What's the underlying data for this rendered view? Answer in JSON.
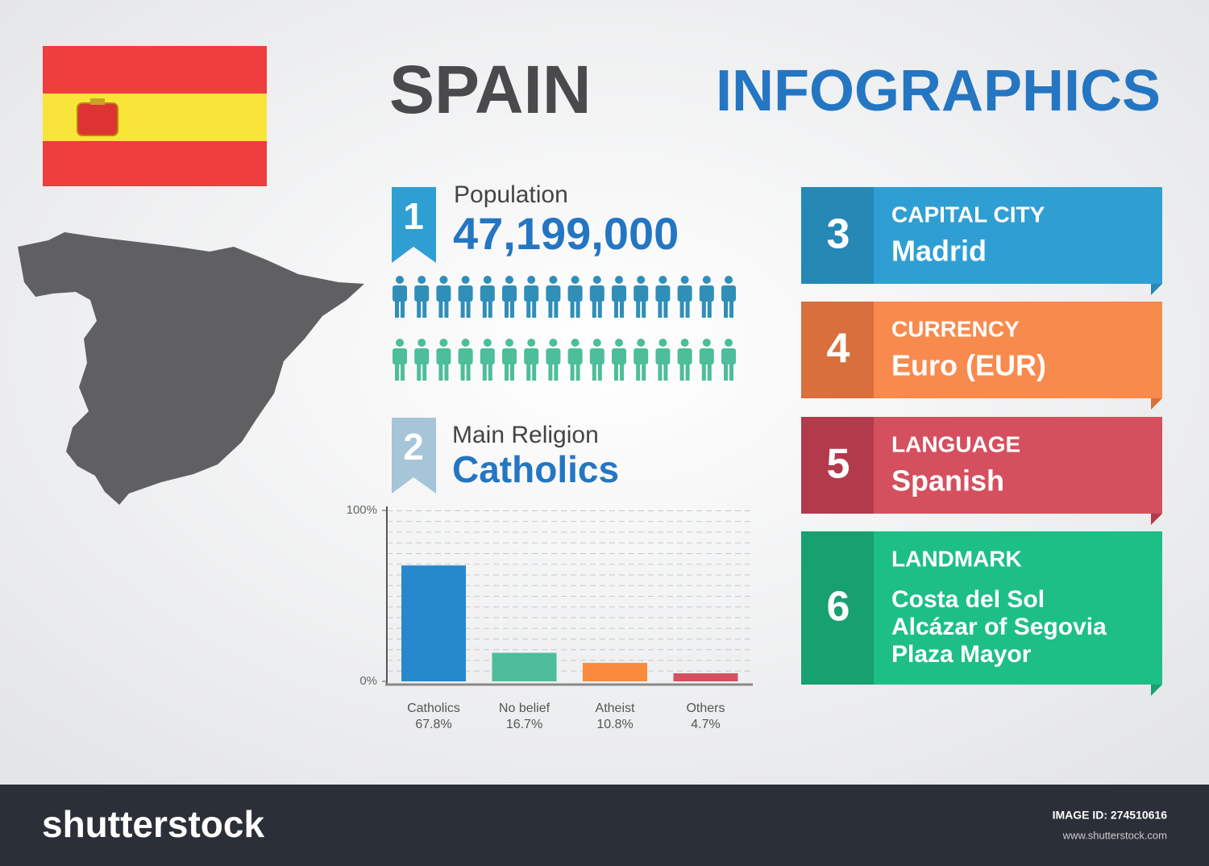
{
  "header": {
    "country": "SPAIN",
    "title": "INFOGRAPHICS"
  },
  "population": {
    "number": "1",
    "label": "Population",
    "value": "47,199,000"
  },
  "religion": {
    "number": "2",
    "label": "Main Religion",
    "value": "Catholics"
  },
  "chart_data": {
    "type": "bar",
    "categories": [
      "Catholics",
      "No belief",
      "Atheist",
      "Others"
    ],
    "values": [
      67.8,
      16.7,
      10.8,
      4.7
    ],
    "value_labels": [
      "67.8%",
      "16.7%",
      "10.8%",
      "4.7%"
    ],
    "colors": [
      "#2589cc",
      "#4dbd9a",
      "#f98a3e",
      "#d4505f"
    ],
    "ylim": [
      0,
      100
    ],
    "yticks": [
      {
        "value": 0,
        "label": "0%"
      },
      {
        "value": 100,
        "label": "100%"
      }
    ]
  },
  "facts": [
    {
      "number": "3",
      "label": "CAPITAL CITY",
      "lines": [
        "Madrid"
      ],
      "color": "#2f9fd3",
      "side": "#2688b5"
    },
    {
      "number": "4",
      "label": "CURRENCY",
      "lines": [
        "Euro (EUR)"
      ],
      "color": "#f98a4e",
      "side": "#d86f3d"
    },
    {
      "number": "5",
      "label": "LANGUAGE",
      "lines": [
        "Spanish"
      ],
      "color": "#d4505f",
      "side": "#b33a4b"
    },
    {
      "number": "6",
      "label": "LANDMARK",
      "lines": [
        "Costa del Sol",
        "Alcázar of Segovia",
        "Plaza Mayor"
      ],
      "color": "#1dbf86",
      "side": "#17a070"
    }
  ],
  "footer": {
    "brand": "shutterstock",
    "image_id": "IMAGE ID: 274510616",
    "url": "www.shutterstock.com"
  }
}
